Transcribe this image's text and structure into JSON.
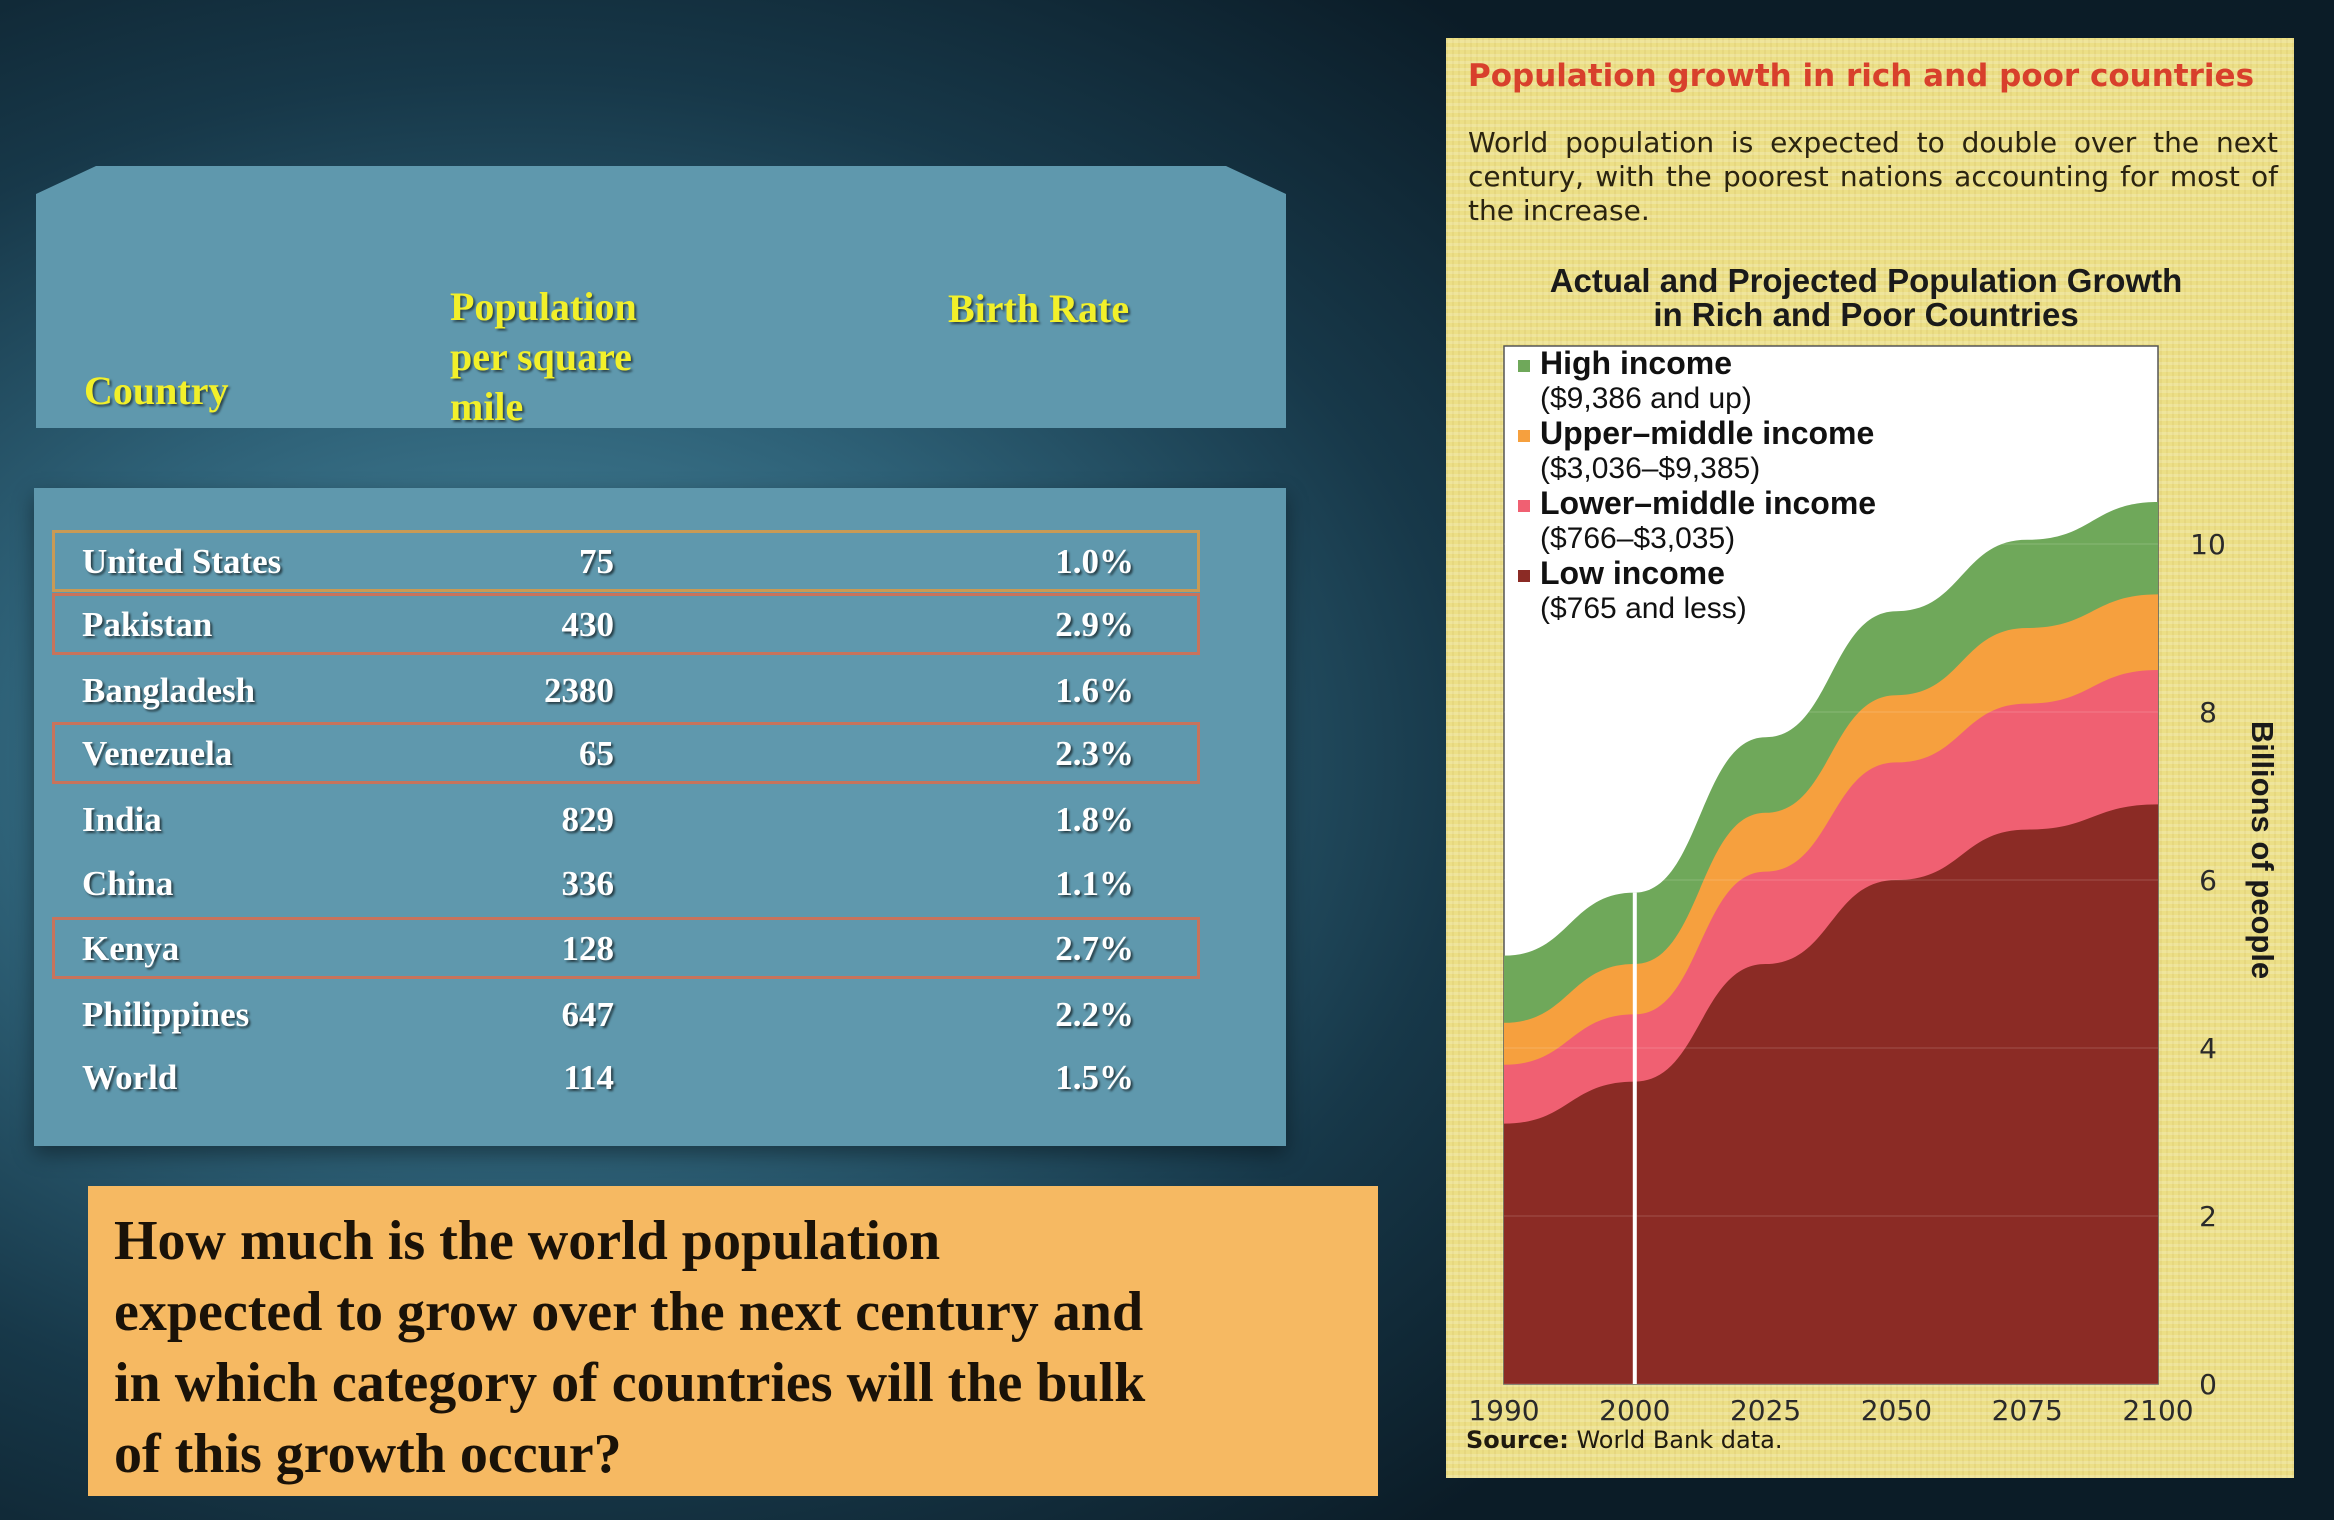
{
  "table": {
    "headers": {
      "country": "Country",
      "population": [
        "Population",
        "per square",
        "mile"
      ],
      "birth_rate": "Birth Rate"
    },
    "rows": [
      {
        "country": "United States",
        "population": "75",
        "birth_rate": "1.0%"
      },
      {
        "country": "Pakistan",
        "population": "430",
        "birth_rate": "2.9%"
      },
      {
        "country": "Bangladesh",
        "population": "2380",
        "birth_rate": "1.6%"
      },
      {
        "country": "Venezuela",
        "population": "65",
        "birth_rate": "2.3%"
      },
      {
        "country": "India",
        "population": "829",
        "birth_rate": "1.8%"
      },
      {
        "country": "China",
        "population": "336",
        "birth_rate": "1.1%"
      },
      {
        "country": "Kenya",
        "population": "128",
        "birth_rate": "2.7%"
      },
      {
        "country": "Philippines",
        "population": "647",
        "birth_rate": "2.2%"
      },
      {
        "country": "World",
        "population": "114",
        "birth_rate": "1.5%"
      }
    ],
    "highlight_colors": {
      "orange": "#c99a55",
      "red": "#c8735c"
    }
  },
  "question": {
    "lines": [
      "How much is the world population",
      "expected to grow over the next century and",
      "in which category of countries will the bulk",
      "of this growth occur?"
    ]
  },
  "figure": {
    "title": "Population growth in rich and poor countries",
    "description": "World population is expected to double over the next century, with the poorest nations accounting for most of the increase.",
    "chart_title_lines": [
      "Actual and Projected Population Growth",
      "in Rich and Poor Countries"
    ],
    "source_label": "Source:",
    "source_text": "World Bank data."
  },
  "chart_data": {
    "type": "area",
    "stacked": true,
    "title": "Actual and Projected Population Growth in Rich and Poor Countries",
    "xlabel": "",
    "ylabel": "Billions of people",
    "x_ticks": [
      "1990",
      "2000",
      "2025",
      "2050",
      "2075",
      "2100"
    ],
    "y_ticks": [
      "0",
      "2",
      "4",
      "6",
      "8",
      "10"
    ],
    "ylim": [
      0,
      12
    ],
    "legend_position": "top-left",
    "series": [
      {
        "name": "Low income",
        "detail": "($765 and less)",
        "color": "#8b2b25",
        "values": [
          3.1,
          3.6,
          5.0,
          6.0,
          6.6,
          6.9
        ]
      },
      {
        "name": "Lower–middle income",
        "detail": "($766–$3,035)",
        "color": "#f06072",
        "values": [
          0.7,
          0.8,
          1.1,
          1.4,
          1.5,
          1.6
        ]
      },
      {
        "name": "Upper–middle income",
        "detail": "($3,036–$9,385)",
        "color": "#f6a03e",
        "values": [
          0.5,
          0.6,
          0.7,
          0.8,
          0.9,
          0.9
        ]
      },
      {
        "name": "High income",
        "detail": "($9,386 and up)",
        "color": "#6fa85a",
        "values": [
          0.8,
          0.85,
          0.9,
          1.0,
          1.05,
          1.1
        ]
      }
    ]
  }
}
